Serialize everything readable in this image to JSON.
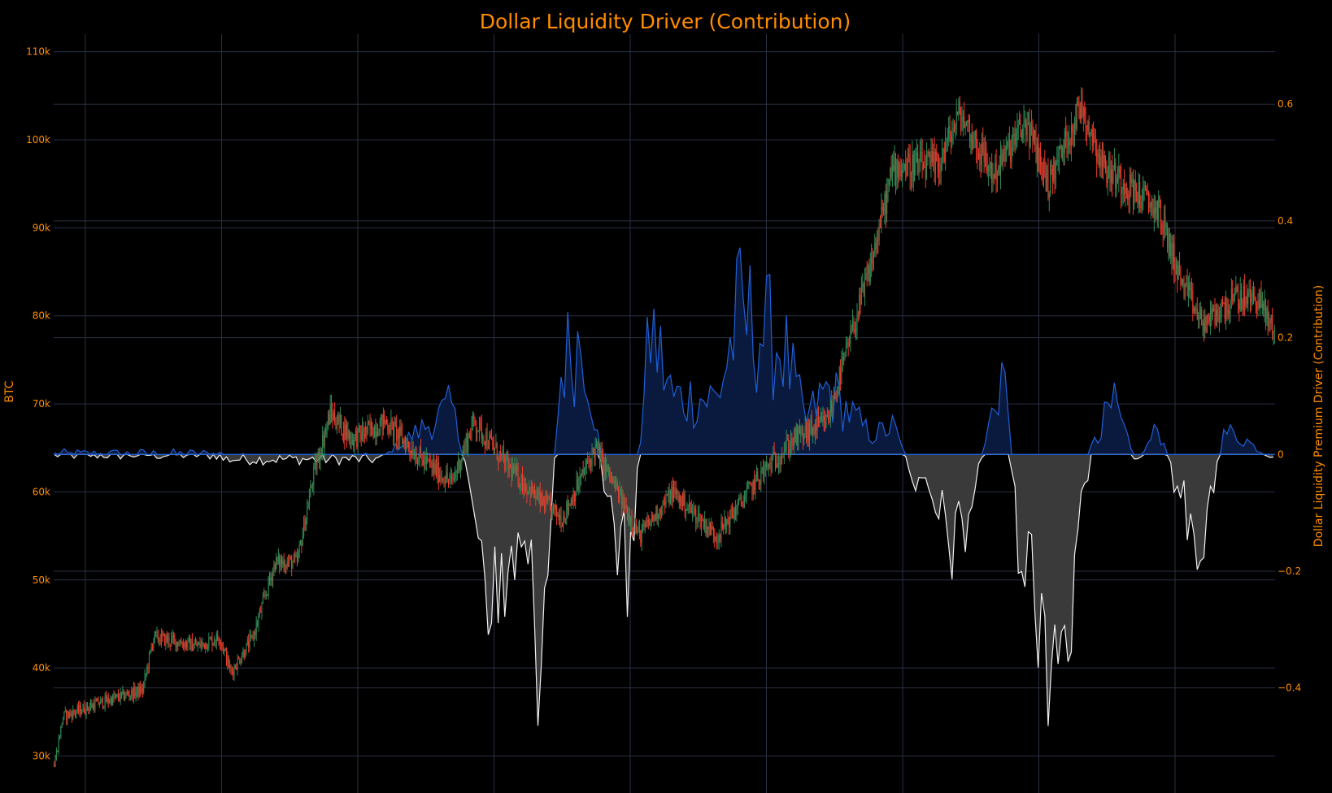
{
  "chart_data": {
    "type": "candlestick+area",
    "title": "Dollar Liquidity Driver (Contribution)",
    "left_axis": {
      "label": "BTC",
      "ticks": [
        30000,
        40000,
        50000,
        60000,
        70000,
        80000,
        90000,
        100000,
        110000
      ],
      "tick_labels": [
        "30k",
        "40k",
        "50k",
        "60k",
        "70k",
        "80k",
        "90k",
        "100k",
        "110k"
      ],
      "range": [
        25800,
        112000
      ]
    },
    "right_axis": {
      "label": "Dollar Liquidity Premium Driver (Contribution)",
      "ticks": [
        -0.4,
        -0.2,
        0,
        0.2,
        0.4,
        0.6
      ],
      "tick_labels": [
        "−0.4",
        "−0.2",
        "0",
        "0.2",
        "0.4",
        "0.6"
      ],
      "range": [
        -0.58,
        0.72
      ]
    },
    "grid": true,
    "colors": {
      "up": "#2e8b57",
      "down": "#ef3b2c",
      "positive_line": "#1f5fd6",
      "positive_fill": "#0a1a3f",
      "negative_line": "#f0f0f0",
      "negative_fill": "#3a3a3a",
      "text": "#ff8c00",
      "background": "#000000"
    },
    "price_path": [
      [
        0,
        29000
      ],
      [
        8,
        34500
      ],
      [
        40,
        36000
      ],
      [
        80,
        37500
      ],
      [
        90,
        43500
      ],
      [
        130,
        42500
      ],
      [
        150,
        43500
      ],
      [
        160,
        39500
      ],
      [
        180,
        43500
      ],
      [
        200,
        52000
      ],
      [
        220,
        52000
      ],
      [
        235,
        62000
      ],
      [
        250,
        69000
      ],
      [
        270,
        66000
      ],
      [
        300,
        68000
      ],
      [
        330,
        64000
      ],
      [
        360,
        61000
      ],
      [
        380,
        68000
      ],
      [
        410,
        63000
      ],
      [
        440,
        59000
      ],
      [
        460,
        57000
      ],
      [
        490,
        65000
      ],
      [
        530,
        55000
      ],
      [
        560,
        60000
      ],
      [
        600,
        55000
      ],
      [
        640,
        62000
      ],
      [
        670,
        66000
      ],
      [
        700,
        68000
      ],
      [
        740,
        86000
      ],
      [
        760,
        97000
      ],
      [
        800,
        97000
      ],
      [
        820,
        103000
      ],
      [
        850,
        96000
      ],
      [
        880,
        102000
      ],
      [
        900,
        95000
      ],
      [
        930,
        104000
      ],
      [
        950,
        97000
      ],
      [
        980,
        94000
      ],
      [
        1000,
        92000
      ],
      [
        1020,
        84000
      ],
      [
        1040,
        79000
      ],
      [
        1070,
        82000
      ],
      [
        1090,
        82000
      ],
      [
        1105,
        78000
      ]
    ],
    "driver_path": [
      [
        0,
        0
      ],
      [
        300,
        0
      ],
      [
        360,
        0.1
      ],
      [
        380,
        -0.1
      ],
      [
        400,
        -0.35
      ],
      [
        420,
        -0.2
      ],
      [
        440,
        -0.4
      ],
      [
        460,
        0.2
      ],
      [
        480,
        0.25
      ],
      [
        500,
        -0.1
      ],
      [
        520,
        -0.25
      ],
      [
        540,
        0.27
      ],
      [
        560,
        0.12
      ],
      [
        600,
        0.12
      ],
      [
        620,
        0.3
      ],
      [
        660,
        0.23
      ],
      [
        680,
        0.07
      ],
      [
        700,
        0.14
      ],
      [
        740,
        0.04
      ],
      [
        760,
        0.06
      ],
      [
        780,
        -0.06
      ],
      [
        820,
        -0.21
      ],
      [
        860,
        0.2
      ],
      [
        870,
        -0.14
      ],
      [
        900,
        -0.38
      ],
      [
        920,
        -0.36
      ],
      [
        940,
        0.04
      ],
      [
        960,
        0.1
      ],
      [
        980,
        -0.02
      ],
      [
        1000,
        0.06
      ],
      [
        1020,
        -0.1
      ],
      [
        1040,
        -0.18
      ],
      [
        1060,
        0.05
      ],
      [
        1080,
        0.03
      ],
      [
        1100,
        -0.01
      ]
    ]
  }
}
